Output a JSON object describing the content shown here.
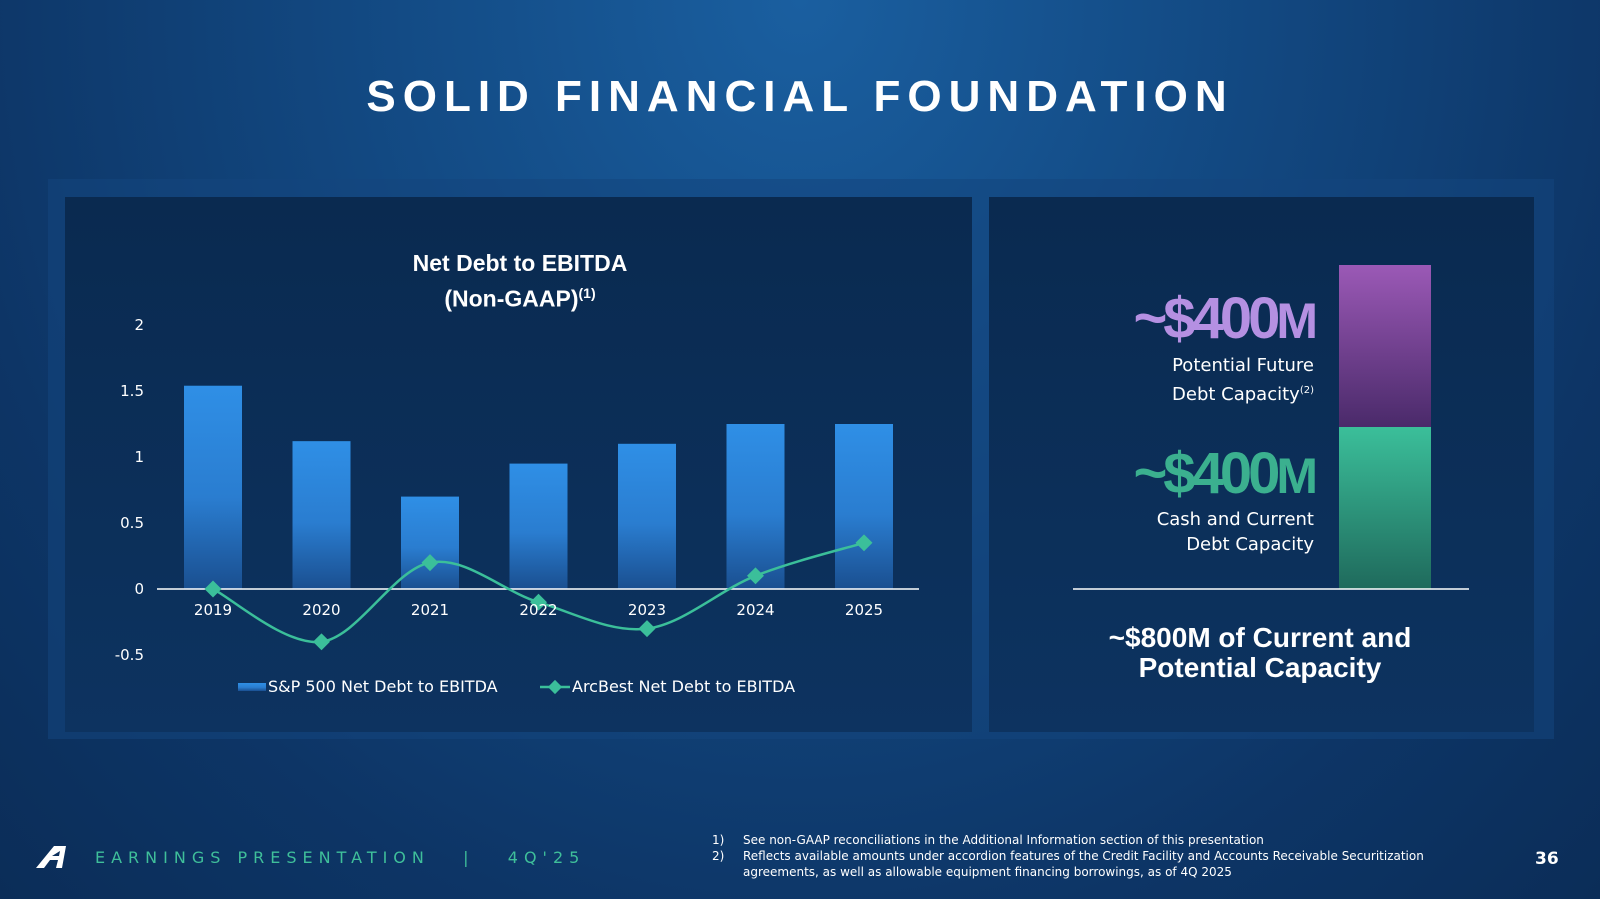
{
  "slide": {
    "title": "SOLID FINANCIAL FOUNDATION",
    "footer_label": "EARNINGS PRESENTATION   |   4Q'25",
    "page_number": "36"
  },
  "chart_data": {
    "type": "bar",
    "title": "Net Debt to EBITDA",
    "subtitle": "(Non-GAAP)",
    "title_footnote": "(1)",
    "categories": [
      "2019",
      "2020",
      "2021",
      "2022",
      "2023",
      "2024",
      "2025"
    ],
    "series": [
      {
        "name": "S&P 500 Net Debt to EBITDA",
        "kind": "bar",
        "values": [
          1.54,
          1.12,
          0.7,
          0.95,
          1.1,
          1.25,
          1.25
        ]
      },
      {
        "name": "ArcBest Net Debt to EBITDA",
        "kind": "line",
        "values": [
          0.0,
          -0.4,
          0.2,
          -0.1,
          -0.3,
          0.1,
          0.35
        ]
      }
    ],
    "ylim": [
      -0.5,
      2
    ],
    "yticks": [
      "2",
      "1.5",
      "1",
      "0.5",
      "0",
      "-0.5"
    ],
    "xlabel": "",
    "ylabel": "",
    "legend_position": "bottom"
  },
  "capacity": {
    "future": {
      "value": "~$400",
      "unit": "M",
      "label_line1": "Potential Future",
      "label_line2": "Debt Capacity",
      "footnote": "(2)",
      "share": 0.5,
      "color": "#a27bd6"
    },
    "current": {
      "value": "~$400",
      "unit": "M",
      "label_line1": "Cash and Current",
      "label_line2": "Debt Capacity",
      "share": 0.5,
      "color": "#3bb08f"
    },
    "summary_line1": "~$800M of Current and",
    "summary_line2": "Potential Capacity"
  },
  "footnotes": [
    {
      "num": "1)",
      "text": "See non-GAAP reconciliations in the Additional Information section of this presentation"
    },
    {
      "num": "2)",
      "text": "Reflects available amounts under accordion features of the Credit Facility and Accounts Receivable Securitization agreements, as well as allowable equipment financing borrowings, as of 4Q 2025"
    }
  ],
  "colors": {
    "bar_top": "#2f8fe6",
    "bar_bottom": "#1f5aa0",
    "line": "#3bbf9a",
    "accent_green": "#3fbf9a",
    "accent_purple": "#a27bd6"
  }
}
